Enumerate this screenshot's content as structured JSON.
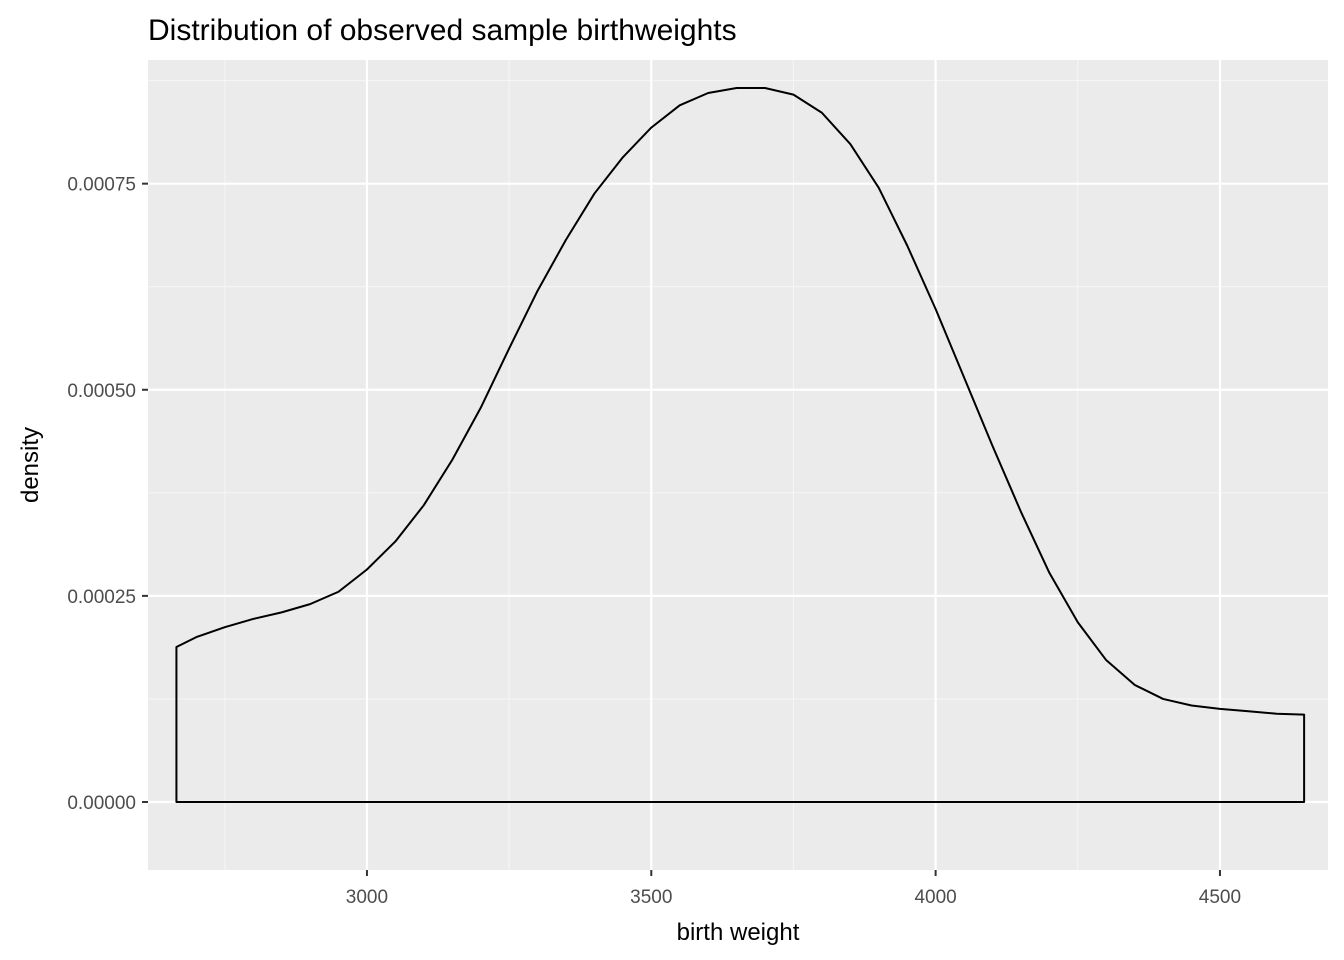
{
  "chart_data": {
    "type": "area",
    "title": "Distribution of observed sample birthweights",
    "xlabel": "birth weight",
    "ylabel": "density",
    "xlim": [
      2615,
      4690
    ],
    "ylim": [
      -8.25e-05,
      0.0009
    ],
    "x_ticks": [
      {
        "value": 3000,
        "label": "3000"
      },
      {
        "value": 3500,
        "label": "3500"
      },
      {
        "value": 4000,
        "label": "4000"
      },
      {
        "value": 4500,
        "label": "4500"
      }
    ],
    "y_ticks": [
      {
        "value": 0,
        "label": "0.00000"
      },
      {
        "value": 0.00025,
        "label": "0.00025"
      },
      {
        "value": 0.0005,
        "label": "0.00050"
      },
      {
        "value": 0.00075,
        "label": "0.00075"
      }
    ],
    "x_minor": [
      2750,
      3250,
      3750,
      4250
    ],
    "y_minor": [
      0.000125,
      0.000375,
      0.000625,
      0.000875
    ],
    "grid": true,
    "series": [
      {
        "x": [
          2665,
          2700,
          2750,
          2800,
          2850,
          2900,
          2950,
          3000,
          3050,
          3100,
          3150,
          3200,
          3250,
          3300,
          3350,
          3400,
          3450,
          3500,
          3550,
          3600,
          3650,
          3700,
          3750,
          3800,
          3850,
          3900,
          3950,
          4000,
          4050,
          4100,
          4150,
          4200,
          4250,
          4300,
          4350,
          4400,
          4450,
          4500,
          4550,
          4600,
          4648
        ],
        "y": [
          0.000188,
          0.0002,
          0.000212,
          0.000222,
          0.00023,
          0.00024,
          0.000255,
          0.000282,
          0.000316,
          0.00036,
          0.000415,
          0.000478,
          0.00055,
          0.00062,
          0.000682,
          0.000738,
          0.000782,
          0.000818,
          0.000845,
          0.00086,
          0.000866,
          0.000866,
          0.000858,
          0.000836,
          0.000798,
          0.000745,
          0.000675,
          0.000598,
          0.000515,
          0.000432,
          0.000352,
          0.000278,
          0.000218,
          0.000172,
          0.000142,
          0.000125,
          0.000117,
          0.000113,
          0.00011,
          0.000107,
          0.000106
        ]
      }
    ],
    "colors": {
      "panel_background": "#ebebeb",
      "grid_major": "#ffffff",
      "grid_minor": "#f5f5f5",
      "line": "#000000",
      "fill": "none"
    }
  }
}
